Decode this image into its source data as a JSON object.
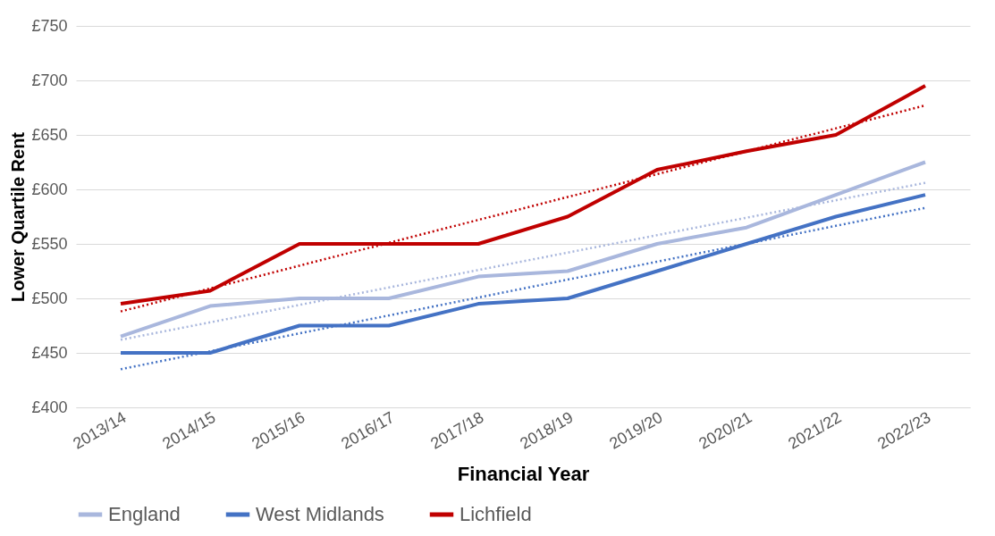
{
  "chart_data": {
    "type": "line",
    "xlabel": "Financial Year",
    "ylabel": "Lower Quartile Rent",
    "categories": [
      "2013/14",
      "2014/15",
      "2015/16",
      "2016/17",
      "2017/18",
      "2018/19",
      "2019/20",
      "2020/21",
      "2021/22",
      "2022/23"
    ],
    "series": [
      {
        "name": "England",
        "color": "#a9b7dd",
        "line_style": "solid",
        "values": [
          465,
          493,
          500,
          500,
          520,
          525,
          550,
          565,
          595,
          625
        ]
      },
      {
        "name": "West Midlands",
        "color": "#4472c4",
        "line_style": "solid",
        "values": [
          450,
          450,
          475,
          475,
          495,
          500,
          525,
          550,
          575,
          595
        ]
      },
      {
        "name": "Lichfield",
        "color": "#c00000",
        "line_style": "solid",
        "values": [
          495,
          507,
          550,
          550,
          550,
          575,
          618,
          635,
          650,
          695
        ]
      },
      {
        "color": "#a9b7dd",
        "line_style": "dotted",
        "x": [
          "2013/14",
          "2022/23"
        ],
        "values": [
          462,
          606
        ]
      },
      {
        "color": "#4472c4",
        "line_style": "dotted",
        "x": [
          "2013/14",
          "2022/23"
        ],
        "values": [
          435,
          583
        ]
      },
      {
        "color": "#c00000",
        "line_style": "dotted",
        "x": [
          "2013/14",
          "2022/23"
        ],
        "values": [
          488,
          677
        ]
      }
    ],
    "ylim": [
      400,
      750
    ],
    "yticks": [
      {
        "value": 400,
        "label": "£400"
      },
      {
        "value": 450,
        "label": "£450"
      },
      {
        "value": 500,
        "label": "£500"
      },
      {
        "value": 550,
        "label": "£550"
      },
      {
        "value": 600,
        "label": "£600"
      },
      {
        "value": 650,
        "label": "£650"
      },
      {
        "value": 700,
        "label": "£700"
      },
      {
        "value": 750,
        "label": "£750"
      }
    ],
    "grid": "y",
    "legend": "bottom"
  }
}
